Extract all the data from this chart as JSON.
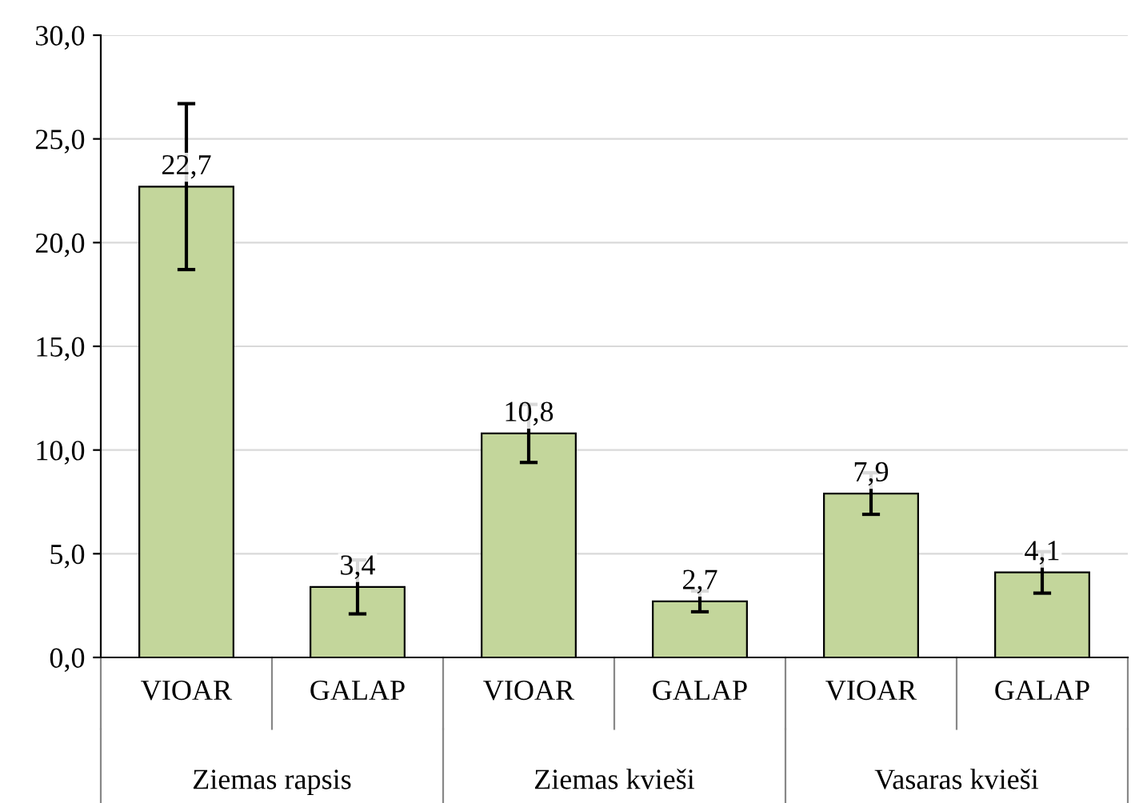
{
  "chart_data": {
    "type": "bar",
    "categories": [
      "VIOAR",
      "GALAP",
      "VIOAR",
      "GALAP",
      "VIOAR",
      "GALAP"
    ],
    "values": [
      22.7,
      3.4,
      10.8,
      2.7,
      7.9,
      4.1
    ],
    "value_labels": [
      "22,7",
      "3,4",
      "10,8",
      "2,7",
      "7,9",
      "4,1"
    ],
    "errors": [
      4.0,
      1.3,
      1.4,
      0.5,
      1.0,
      1.0
    ],
    "color": "#c3d69b",
    "ylim": [
      0,
      30
    ],
    "yticks": [
      {
        "value": 0,
        "label": "0,0"
      },
      {
        "value": 5,
        "label": "5,0"
      },
      {
        "value": 10,
        "label": "10,0"
      },
      {
        "value": 15,
        "label": "15,0"
      },
      {
        "value": 20,
        "label": "20,0"
      },
      {
        "value": 25,
        "label": "25,0"
      },
      {
        "value": 30,
        "label": "30,0"
      }
    ],
    "grid": "y",
    "legend": false,
    "annotations": [
      "Ziemas rapsis",
      "Ziemas kvieši",
      "Vasaras kvieši"
    ]
  }
}
